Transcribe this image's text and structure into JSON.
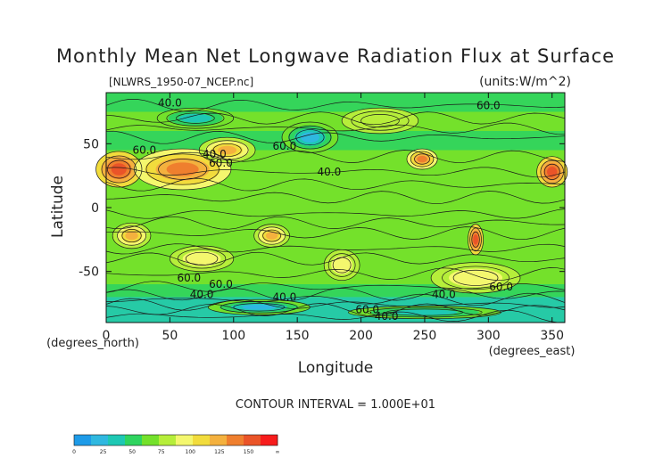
{
  "chart_data": {
    "type": "heatmap",
    "title": "Monthly Mean Net Longwave Radiation Flux at Surface",
    "source_label": "[NLWRS_1950-07_NCEP.nc]",
    "units_label": "(units:W/m^2)",
    "xlabel": "Longitude",
    "ylabel": "Latitude",
    "x_unit_label": "(degrees_east)",
    "y_unit_label": "(degrees_north)",
    "xlim": [
      0,
      360
    ],
    "ylim": [
      -90,
      90
    ],
    "x_ticks": [
      0,
      50,
      100,
      150,
      200,
      250,
      300,
      350
    ],
    "y_ticks": [
      50,
      0,
      -50
    ],
    "contour_interval_label": "CONTOUR INTERVAL = 1.000E+01",
    "contour_labels": [
      "40.0",
      "60.0",
      "40.0",
      "60.0",
      "60.0",
      "40.0",
      "60.0",
      "60.0",
      "40.0",
      "60.0",
      "40.0",
      "60.0",
      "40.0",
      "60.0",
      "40.0"
    ],
    "colorbar": {
      "ticks": [
        "0",
        "25",
        "50",
        "75",
        "100",
        "125",
        "150",
        "∞"
      ],
      "colors": [
        "#1e9be8",
        "#2fb8e0",
        "#1ec8b4",
        "#2fd45f",
        "#74e12b",
        "#b6ee3a",
        "#f4f76e",
        "#f2dc3c",
        "#f4b13e",
        "#ef7f2e",
        "#ea5428",
        "#f71c1c"
      ]
    },
    "regions": [
      {
        "lon": 10,
        "lat": 30,
        "rx": 18,
        "ry": 14,
        "level": 10
      },
      {
        "lon": 60,
        "lat": 30,
        "rx": 38,
        "ry": 16,
        "level": 9
      },
      {
        "lon": 95,
        "lat": 45,
        "rx": 22,
        "ry": 10,
        "level": 8
      },
      {
        "lon": 248,
        "lat": 38,
        "rx": 12,
        "ry": 8,
        "level": 9
      },
      {
        "lon": 350,
        "lat": 28,
        "rx": 12,
        "ry": 12,
        "level": 10
      },
      {
        "lon": 20,
        "lat": -22,
        "rx": 15,
        "ry": 10,
        "level": 8
      },
      {
        "lon": 130,
        "lat": -22,
        "rx": 14,
        "ry": 9,
        "level": 8
      },
      {
        "lon": 290,
        "lat": -25,
        "rx": 6,
        "ry": 12,
        "level": 10
      },
      {
        "lon": 185,
        "lat": -45,
        "rx": 14,
        "ry": 12,
        "level": 6
      },
      {
        "lon": 290,
        "lat": -55,
        "rx": 35,
        "ry": 12,
        "level": 6
      },
      {
        "lon": 75,
        "lat": -40,
        "rx": 25,
        "ry": 10,
        "level": 6
      },
      {
        "lon": 160,
        "lat": 55,
        "rx": 22,
        "ry": 12,
        "level": 1
      },
      {
        "lon": 70,
        "lat": 70,
        "rx": 30,
        "ry": 8,
        "level": 2
      },
      {
        "lon": 215,
        "lat": 68,
        "rx": 30,
        "ry": 10,
        "level": 5
      },
      {
        "lon": 120,
        "lat": -78,
        "rx": 40,
        "ry": 6,
        "level": 1
      },
      {
        "lon": 250,
        "lat": -82,
        "rx": 60,
        "ry": 5,
        "level": 2
      }
    ]
  }
}
